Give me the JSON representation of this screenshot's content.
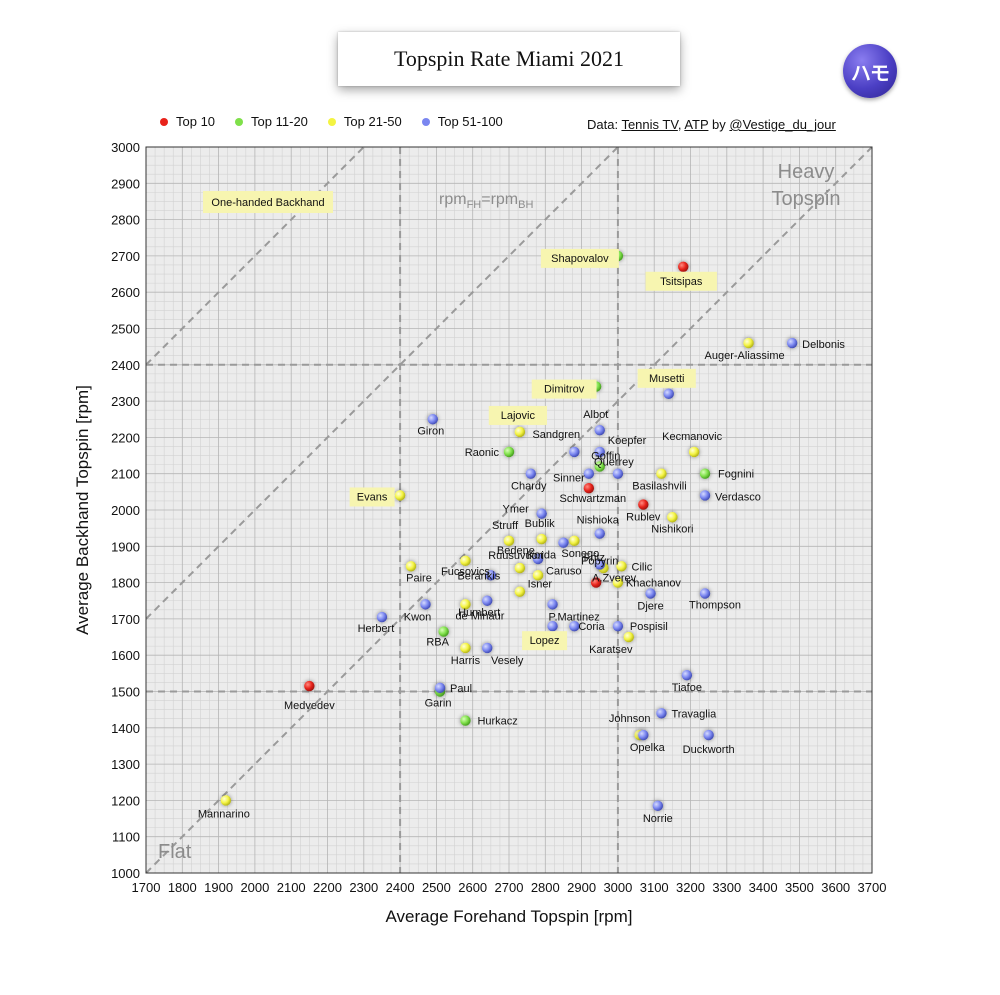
{
  "title": "Topspin Rate Miami 2021",
  "logo_text": "ハモ",
  "credit": {
    "prefix": "Data: ",
    "source1": "Tennis TV",
    "sep": ", ",
    "source2": "ATP",
    "by": " by ",
    "author": "@Vestige_du_jour"
  },
  "legend": [
    {
      "name": "Top 10",
      "color": "#e8231b"
    },
    {
      "name": "Top 11-20",
      "color": "#7fe04a"
    },
    {
      "name": "Top 21-50",
      "color": "#f4f442"
    },
    {
      "name": "Top 51-100",
      "color": "#7a86f0"
    }
  ],
  "chart_data": {
    "type": "scatter",
    "xlabel": "Average Forehand Topspin [rpm]",
    "ylabel": "Average Backhand Topspin [rpm]",
    "xlim": [
      1700,
      3700
    ],
    "ylim": [
      1000,
      3000
    ],
    "x_ticks": [
      1700,
      1800,
      1900,
      2000,
      2100,
      2200,
      2300,
      2400,
      2500,
      2600,
      2700,
      2800,
      2900,
      3000,
      3100,
      3200,
      3300,
      3400,
      3500,
      3600,
      3700
    ],
    "y_ticks": [
      1000,
      1100,
      1200,
      1300,
      1400,
      1500,
      1600,
      1700,
      1800,
      1900,
      2000,
      2100,
      2200,
      2300,
      2400,
      2500,
      2600,
      2700,
      2800,
      2900,
      3000
    ],
    "grid": true,
    "legend_position": "top-left",
    "reference_lines_x": [
      2400,
      3000
    ],
    "reference_lines_y": [
      1500,
      2400
    ],
    "diagonal_offsets": [
      -700,
      0,
      700
    ],
    "annotations": {
      "heavy_1": "Heavy",
      "heavy_2": "Topspin",
      "flat": "Flat",
      "diag_base": "rpm",
      "diag_sub1": "FH",
      "diag_eq": "=rpm",
      "diag_sub2": "BH",
      "one_handed": "One-handed Backhand"
    },
    "points": [
      {
        "name": "Medvedev",
        "x": 2150,
        "y": 1515,
        "group": 0,
        "one_handed": false
      },
      {
        "name": "Tsitsipas",
        "x": 3180,
        "y": 2670,
        "group": 0,
        "one_handed": true
      },
      {
        "name": "Rublev",
        "x": 3070,
        "y": 2015,
        "group": 0,
        "one_handed": false
      },
      {
        "name": "Schwartzman",
        "x": 2920,
        "y": 2060,
        "group": 0,
        "one_handed": false
      },
      {
        "name": "A.Zverev",
        "x": 2940,
        "y": 1800,
        "group": 0,
        "one_handed": false
      },
      {
        "name": "Shapovalov",
        "x": 3000,
        "y": 2700,
        "group": 1,
        "one_handed": true
      },
      {
        "name": "Dimitrov",
        "x": 2940,
        "y": 2340,
        "group": 1,
        "one_handed": true
      },
      {
        "name": "Raonic",
        "x": 2700,
        "y": 2160,
        "group": 1,
        "one_handed": false
      },
      {
        "name": "Goffin",
        "x": 2950,
        "y": 2120,
        "group": 1,
        "one_handed": false
      },
      {
        "name": "Fognini",
        "x": 3240,
        "y": 2100,
        "group": 1,
        "one_handed": false
      },
      {
        "name": "RBA",
        "x": 2520,
        "y": 1665,
        "group": 1,
        "one_handed": false
      },
      {
        "name": "Garin",
        "x": 2510,
        "y": 1500,
        "group": 1,
        "one_handed": false
      },
      {
        "name": "Hurkacz",
        "x": 2580,
        "y": 1420,
        "group": 1,
        "one_handed": false
      },
      {
        "name": "Auger-Aliassime",
        "x": 3360,
        "y": 2460,
        "group": 2,
        "one_handed": false
      },
      {
        "name": "Lajovic",
        "x": 2730,
        "y": 2215,
        "group": 2,
        "one_handed": true
      },
      {
        "name": "Evans",
        "x": 2400,
        "y": 2040,
        "group": 2,
        "one_handed": true
      },
      {
        "name": "Kecmanovic",
        "x": 3210,
        "y": 2160,
        "group": 2,
        "one_handed": false
      },
      {
        "name": "Basilashvili",
        "x": 3120,
        "y": 2100,
        "group": 2,
        "one_handed": false
      },
      {
        "name": "Nishikori",
        "x": 3150,
        "y": 1980,
        "group": 2,
        "one_handed": false
      },
      {
        "name": "Struff",
        "x": 2700,
        "y": 1915,
        "group": 2,
        "one_handed": false
      },
      {
        "name": "Bublik",
        "x": 2790,
        "y": 1920,
        "group": 2,
        "one_handed": false
      },
      {
        "name": "Sonego",
        "x": 2880,
        "y": 1915,
        "group": 2,
        "one_handed": false
      },
      {
        "name": "Paire",
        "x": 2430,
        "y": 1845,
        "group": 2,
        "one_handed": false
      },
      {
        "name": "Fucsovics",
        "x": 2580,
        "y": 1860,
        "group": 2,
        "one_handed": false
      },
      {
        "name": "Bedene",
        "x": 2730,
        "y": 1840,
        "group": 2,
        "one_handed": false
      },
      {
        "name": "Caruso",
        "x": 2780,
        "y": 1820,
        "group": 2,
        "one_handed": false
      },
      {
        "name": "Cilic",
        "x": 3010,
        "y": 1845,
        "group": 2,
        "one_handed": false
      },
      {
        "name": "Fritz",
        "x": 2960,
        "y": 1840,
        "group": 2,
        "one_handed": false
      },
      {
        "name": "Khachanov",
        "x": 3000,
        "y": 1800,
        "group": 2,
        "one_handed": false
      },
      {
        "name": "Isner",
        "x": 2730,
        "y": 1775,
        "group": 2,
        "one_handed": false
      },
      {
        "name": "de Minaur",
        "x": 2580,
        "y": 1740,
        "group": 2,
        "one_handed": false
      },
      {
        "name": "Harris",
        "x": 2580,
        "y": 1620,
        "group": 2,
        "one_handed": false
      },
      {
        "name": "Karatsev",
        "x": 3030,
        "y": 1650,
        "group": 2,
        "one_handed": false
      },
      {
        "name": "Johnson",
        "x": 3060,
        "y": 1380,
        "group": 2,
        "one_handed": false
      },
      {
        "name": "Mannarino",
        "x": 1920,
        "y": 1200,
        "group": 2,
        "one_handed": false
      },
      {
        "name": "Delbonis",
        "x": 3480,
        "y": 2460,
        "group": 3,
        "one_handed": false
      },
      {
        "name": "Musetti",
        "x": 3140,
        "y": 2320,
        "group": 3,
        "one_handed": true
      },
      {
        "name": "Giron",
        "x": 2490,
        "y": 2250,
        "group": 3,
        "one_handed": false
      },
      {
        "name": "Albot",
        "x": 2950,
        "y": 2220,
        "group": 3,
        "one_handed": false
      },
      {
        "name": "Sandgren",
        "x": 2880,
        "y": 2160,
        "group": 3,
        "one_handed": false
      },
      {
        "name": "Koepfer",
        "x": 2950,
        "y": 2160,
        "group": 3,
        "one_handed": false
      },
      {
        "name": "Querrey",
        "x": 3000,
        "y": 2100,
        "group": 3,
        "one_handed": false
      },
      {
        "name": "Chardy",
        "x": 2760,
        "y": 2100,
        "group": 3,
        "one_handed": false
      },
      {
        "name": "Sinner",
        "x": 2920,
        "y": 2100,
        "group": 3,
        "one_handed": false
      },
      {
        "name": "Verdasco",
        "x": 3240,
        "y": 2040,
        "group": 3,
        "one_handed": false
      },
      {
        "name": "Ymer",
        "x": 2790,
        "y": 1990,
        "group": 3,
        "one_handed": false
      },
      {
        "name": "Nishioka",
        "x": 2950,
        "y": 1935,
        "group": 3,
        "one_handed": false
      },
      {
        "name": "Korda",
        "x": 2850,
        "y": 1910,
        "group": 3,
        "one_handed": false
      },
      {
        "name": "Ruusuvuori",
        "x": 2780,
        "y": 1865,
        "group": 3,
        "one_handed": false
      },
      {
        "name": "Popyrin",
        "x": 2950,
        "y": 1850,
        "group": 3,
        "one_handed": false
      },
      {
        "name": "Berankis",
        "x": 2650,
        "y": 1820,
        "group": 3,
        "one_handed": false
      },
      {
        "name": "Humbert",
        "x": 2640,
        "y": 1750,
        "group": 3,
        "one_handed": false
      },
      {
        "name": "Kwon",
        "x": 2470,
        "y": 1740,
        "group": 3,
        "one_handed": false
      },
      {
        "name": "Herbert",
        "x": 2350,
        "y": 1705,
        "group": 3,
        "one_handed": false
      },
      {
        "name": "P.Martinez",
        "x": 2820,
        "y": 1740,
        "group": 3,
        "one_handed": false
      },
      {
        "name": "Djere",
        "x": 3090,
        "y": 1770,
        "group": 3,
        "one_handed": false
      },
      {
        "name": "Thompson",
        "x": 3240,
        "y": 1770,
        "group": 3,
        "one_handed": false
      },
      {
        "name": "Lopez",
        "x": 2820,
        "y": 1680,
        "group": 3,
        "one_handed": true
      },
      {
        "name": "Coria",
        "x": 2880,
        "y": 1680,
        "group": 3,
        "one_handed": false
      },
      {
        "name": "Pospisil",
        "x": 3000,
        "y": 1680,
        "group": 3,
        "one_handed": false
      },
      {
        "name": "Vesely",
        "x": 2640,
        "y": 1620,
        "group": 3,
        "one_handed": false
      },
      {
        "name": "Paul",
        "x": 2510,
        "y": 1510,
        "group": 3,
        "one_handed": false
      },
      {
        "name": "Tiafoe",
        "x": 3190,
        "y": 1545,
        "group": 3,
        "one_handed": false
      },
      {
        "name": "Travaglia",
        "x": 3120,
        "y": 1440,
        "group": 3,
        "one_handed": false
      },
      {
        "name": "Opelka",
        "x": 3070,
        "y": 1380,
        "group": 3,
        "one_handed": false
      },
      {
        "name": "Duckworth",
        "x": 3250,
        "y": 1380,
        "group": 3,
        "one_handed": false
      },
      {
        "name": "Norrie",
        "x": 3110,
        "y": 1185,
        "group": 3,
        "one_handed": false
      }
    ]
  }
}
